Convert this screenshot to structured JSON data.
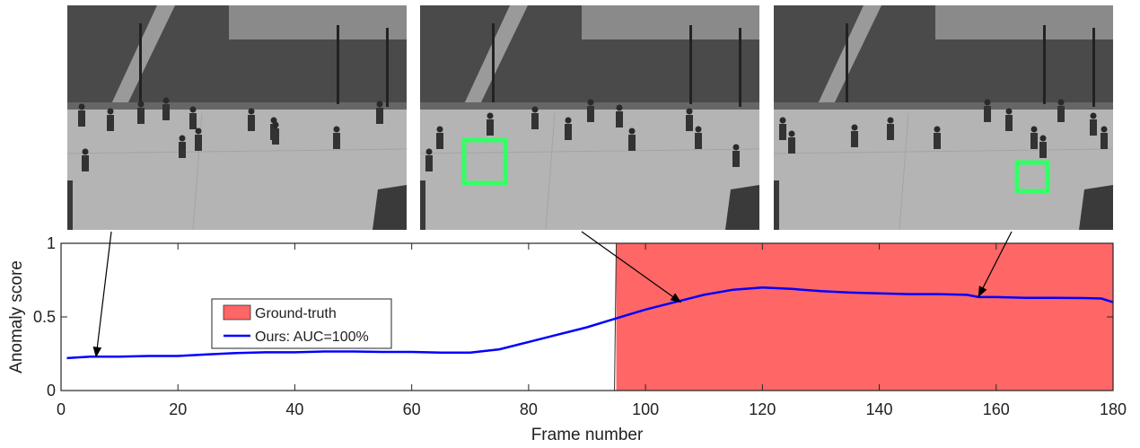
{
  "frames": [
    {
      "name": "frame-normal",
      "has_box": false
    },
    {
      "name": "frame-bicycle",
      "has_box": true
    },
    {
      "name": "frame-cart",
      "has_box": true
    }
  ],
  "colors": {
    "ground_truth": "#ff6666",
    "score_line": "#0000ff",
    "detection_box": "#33ff66",
    "arrow": "#000000"
  },
  "chart_data": {
    "type": "line",
    "title": "",
    "xlabel": "Frame number",
    "ylabel": "Anomaly score",
    "xlim": [
      0,
      180
    ],
    "ylim": [
      0,
      1
    ],
    "xticks": [
      0,
      20,
      40,
      60,
      80,
      100,
      120,
      140,
      160,
      180
    ],
    "yticks": [
      0,
      0.5,
      1
    ],
    "yticklabels": [
      "0",
      "0.5",
      "1"
    ],
    "legend": {
      "location": "center-left",
      "entries": [
        "Ground-truth",
        "Ours: AUC=100%"
      ]
    },
    "ground_truth": {
      "name": "Ground-truth",
      "x_start": 95,
      "x_end": 180,
      "value": 1
    },
    "series": [
      {
        "name": "Ours: AUC=100%",
        "x": [
          1,
          5,
          10,
          15,
          20,
          25,
          30,
          35,
          40,
          45,
          50,
          55,
          60,
          65,
          70,
          75,
          80,
          85,
          90,
          95,
          100,
          105,
          110,
          115,
          120,
          125,
          130,
          135,
          140,
          145,
          150,
          155,
          157,
          160,
          165,
          170,
          175,
          178,
          180
        ],
        "y": [
          0.22,
          0.23,
          0.23,
          0.235,
          0.235,
          0.245,
          0.255,
          0.26,
          0.26,
          0.265,
          0.265,
          0.262,
          0.262,
          0.258,
          0.258,
          0.28,
          0.33,
          0.38,
          0.43,
          0.49,
          0.55,
          0.6,
          0.65,
          0.685,
          0.7,
          0.69,
          0.675,
          0.665,
          0.66,
          0.655,
          0.655,
          0.65,
          0.635,
          0.635,
          0.63,
          0.63,
          0.628,
          0.625,
          0.6
        ]
      }
    ],
    "annotations": [
      {
        "from_frame": 1,
        "to": [
          6,
          0.23
        ]
      },
      {
        "from_frame": 2,
        "to": [
          106,
          0.6
        ]
      },
      {
        "from_frame": 3,
        "to": [
          157,
          0.64
        ]
      }
    ]
  }
}
